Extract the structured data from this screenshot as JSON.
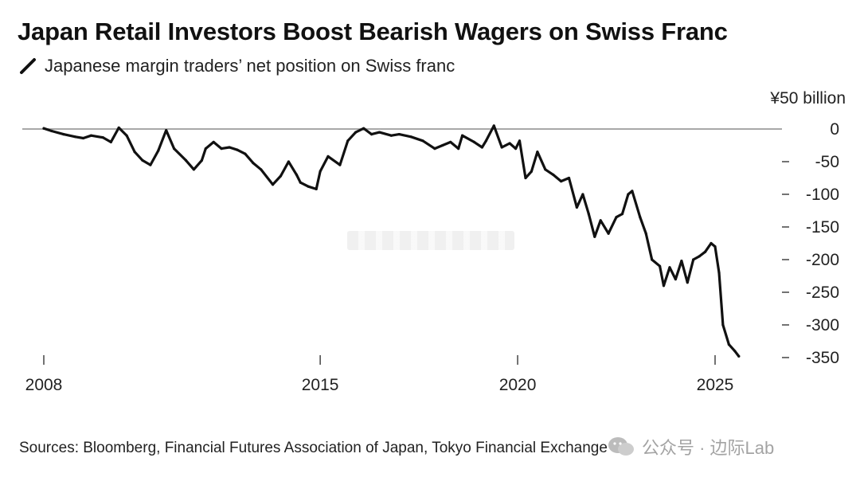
{
  "header": {
    "title": "Japan Retail Investors Boost Bearish Wagers on Swiss Franc",
    "legend_label": "Japanese margin traders’ net position on Swiss franc",
    "unit_label": "¥50 billion"
  },
  "footer": {
    "source": "Sources: Bloomberg, Financial Futures Association of Japan, Tokyo Financial Exchange",
    "watermark": "公众号 · 边际Lab"
  },
  "colors": {
    "line": "#111111",
    "zero_line": "#a8a8a8",
    "text": "#222222",
    "watermark": "#9a9a9a"
  },
  "chart_data": {
    "type": "line",
    "title": "Japan Retail Investors Boost Bearish Wagers on Swiss Franc",
    "subtitle": "Japanese margin traders’ net position on Swiss franc",
    "ylabel": "¥ billion",
    "xlabel": "",
    "xlim": [
      2008,
      2025.8
    ],
    "ylim": [
      -350,
      0
    ],
    "y_ticks": [
      0,
      -50,
      -100,
      -150,
      -200,
      -250,
      -300,
      -350
    ],
    "y_tick_labels": [
      "0",
      "-50",
      "-100",
      "-150",
      "-200",
      "-250",
      "-300",
      "-350"
    ],
    "x_ticks": [
      2008,
      2015,
      2020,
      2025
    ],
    "x_tick_labels": [
      "2008",
      "2015",
      "2020",
      "2025"
    ],
    "grid": false,
    "series": [
      {
        "name": "Japanese margin traders’ net position on Swiss franc",
        "x": [
          2008.0,
          2008.2,
          2008.5,
          2008.8,
          2009.0,
          2009.2,
          2009.5,
          2009.7,
          2009.9,
          2010.1,
          2010.3,
          2010.5,
          2010.7,
          2010.9,
          2011.1,
          2011.3,
          2011.6,
          2011.8,
          2012.0,
          2012.1,
          2012.3,
          2012.5,
          2012.7,
          2012.9,
          2013.1,
          2013.3,
          2013.5,
          2013.8,
          2014.0,
          2014.2,
          2014.4,
          2014.5,
          2014.7,
          2014.9,
          2015.0,
          2015.2,
          2015.5,
          2015.7,
          2015.9,
          2016.1,
          2016.3,
          2016.5,
          2016.8,
          2017.0,
          2017.3,
          2017.6,
          2017.9,
          2018.1,
          2018.3,
          2018.5,
          2018.6,
          2018.9,
          2019.1,
          2019.2,
          2019.4,
          2019.6,
          2019.8,
          2019.95,
          2020.05,
          2020.2,
          2020.35,
          2020.5,
          2020.7,
          2020.9,
          2021.1,
          2021.3,
          2021.5,
          2021.65,
          2021.8,
          2021.95,
          2022.1,
          2022.3,
          2022.5,
          2022.65,
          2022.8,
          2022.9,
          2023.1,
          2023.25,
          2023.4,
          2023.6,
          2023.7,
          2023.85,
          2024.0,
          2024.15,
          2024.3,
          2024.45,
          2024.6,
          2024.75,
          2024.9,
          2025.0,
          2025.1,
          2025.2,
          2025.35,
          2025.5,
          2025.6
        ],
        "values": [
          1,
          -3,
          -8,
          -12,
          -14,
          -10,
          -13,
          -20,
          2,
          -10,
          -35,
          -48,
          -55,
          -33,
          -2,
          -30,
          -48,
          -62,
          -48,
          -30,
          -20,
          -30,
          -28,
          -32,
          -38,
          -52,
          -62,
          -85,
          -72,
          -50,
          -70,
          -82,
          -88,
          -92,
          -65,
          -42,
          -55,
          -18,
          -5,
          1,
          -8,
          -5,
          -10,
          -8,
          -12,
          -18,
          -30,
          -25,
          -20,
          -30,
          -10,
          -20,
          -28,
          -18,
          5,
          -28,
          -22,
          -30,
          -18,
          -75,
          -65,
          -35,
          -62,
          -70,
          -80,
          -75,
          -120,
          -100,
          -130,
          -165,
          -140,
          -160,
          -135,
          -130,
          -100,
          -95,
          -135,
          -160,
          -200,
          -210,
          -240,
          -212,
          -230,
          -202,
          -235,
          -200,
          -195,
          -188,
          -175,
          -180,
          -220,
          -300,
          -330,
          -340,
          -348
        ]
      }
    ]
  }
}
